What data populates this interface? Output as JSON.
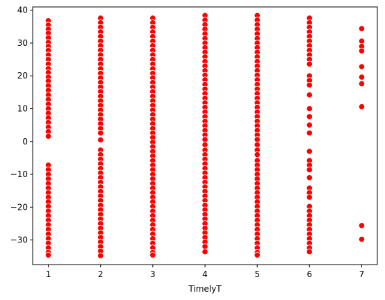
{
  "chart_data": {
    "type": "scatter",
    "title": "",
    "xlabel": "TimelyT",
    "ylabel": "",
    "xlim": [
      0.7,
      7.3
    ],
    "ylim": [
      -37.5,
      41.0
    ],
    "x_ticks": [
      1,
      2,
      3,
      4,
      5,
      6,
      7
    ],
    "y_ticks": [
      -30,
      -20,
      -10,
      0,
      10,
      20,
      30,
      40
    ],
    "grid": false,
    "legend": "none",
    "marker_color": "#ff0000",
    "marker_edge_color": "#ffffff",
    "series": [
      {
        "points": [
          [
            1,
            36.8
          ],
          [
            1,
            35.5
          ],
          [
            1,
            34.2
          ],
          [
            1,
            33.0
          ],
          [
            1,
            31.6
          ],
          [
            1,
            30.2
          ],
          [
            1,
            29.0
          ],
          [
            1,
            27.8
          ],
          [
            1,
            26.4
          ],
          [
            1,
            25.0
          ],
          [
            1,
            23.6
          ],
          [
            1,
            22.2
          ],
          [
            1,
            21.0
          ],
          [
            1,
            19.6
          ],
          [
            1,
            18.4
          ],
          [
            1,
            17.0
          ],
          [
            1,
            15.6
          ],
          [
            1,
            14.2
          ],
          [
            1,
            12.8
          ],
          [
            1,
            11.4
          ],
          [
            1,
            10.0
          ],
          [
            1,
            8.6
          ],
          [
            1,
            7.2
          ],
          [
            1,
            5.8
          ],
          [
            1,
            4.4
          ],
          [
            1,
            3.0
          ],
          [
            1,
            1.6
          ],
          [
            1,
            -7.2
          ],
          [
            1,
            -8.6
          ],
          [
            1,
            -10.0
          ],
          [
            1,
            -11.4
          ],
          [
            1,
            -12.8
          ],
          [
            1,
            -14.2
          ],
          [
            1,
            -15.6
          ],
          [
            1,
            -17.0
          ],
          [
            1,
            -18.4
          ],
          [
            1,
            -19.8
          ],
          [
            1,
            -21.2
          ],
          [
            1,
            -22.6
          ],
          [
            1,
            -24.0
          ],
          [
            1,
            -25.4
          ],
          [
            1,
            -26.8
          ],
          [
            1,
            -28.2
          ],
          [
            1,
            -29.6
          ],
          [
            1,
            -31.0
          ],
          [
            1,
            -32.4
          ],
          [
            1,
            -33.8
          ],
          [
            1,
            -34.6
          ],
          [
            2,
            37.6
          ],
          [
            2,
            36.2
          ],
          [
            2,
            34.8
          ],
          [
            2,
            33.4
          ],
          [
            2,
            32.0
          ],
          [
            2,
            30.6
          ],
          [
            2,
            29.2
          ],
          [
            2,
            27.8
          ],
          [
            2,
            26.4
          ],
          [
            2,
            25.0
          ],
          [
            2,
            23.6
          ],
          [
            2,
            22.2
          ],
          [
            2,
            20.8
          ],
          [
            2,
            19.4
          ],
          [
            2,
            18.0
          ],
          [
            2,
            16.6
          ],
          [
            2,
            15.2
          ],
          [
            2,
            13.8
          ],
          [
            2,
            12.4
          ],
          [
            2,
            11.0
          ],
          [
            2,
            9.6
          ],
          [
            2,
            8.2
          ],
          [
            2,
            6.8
          ],
          [
            2,
            5.4
          ],
          [
            2,
            4.0
          ],
          [
            2,
            2.6
          ],
          [
            2,
            0.5
          ],
          [
            2,
            -2.6
          ],
          [
            2,
            -4.0
          ],
          [
            2,
            -5.4
          ],
          [
            2,
            -6.8
          ],
          [
            2,
            -8.2
          ],
          [
            2,
            -9.6
          ],
          [
            2,
            -11.0
          ],
          [
            2,
            -12.4
          ],
          [
            2,
            -13.8
          ],
          [
            2,
            -15.2
          ],
          [
            2,
            -16.6
          ],
          [
            2,
            -18.0
          ],
          [
            2,
            -19.4
          ],
          [
            2,
            -20.8
          ],
          [
            2,
            -22.2
          ],
          [
            2,
            -23.6
          ],
          [
            2,
            -25.0
          ],
          [
            2,
            -26.4
          ],
          [
            2,
            -27.8
          ],
          [
            2,
            -29.2
          ],
          [
            2,
            -30.6
          ],
          [
            2,
            -32.0
          ],
          [
            2,
            -33.4
          ],
          [
            2,
            -34.8
          ],
          [
            3,
            37.6
          ],
          [
            3,
            36.2
          ],
          [
            3,
            34.8
          ],
          [
            3,
            33.4
          ],
          [
            3,
            32.0
          ],
          [
            3,
            30.6
          ],
          [
            3,
            29.2
          ],
          [
            3,
            27.8
          ],
          [
            3,
            26.4
          ],
          [
            3,
            25.0
          ],
          [
            3,
            23.6
          ],
          [
            3,
            22.2
          ],
          [
            3,
            20.8
          ],
          [
            3,
            19.4
          ],
          [
            3,
            18.0
          ],
          [
            3,
            16.6
          ],
          [
            3,
            15.2
          ],
          [
            3,
            13.8
          ],
          [
            3,
            12.4
          ],
          [
            3,
            11.0
          ],
          [
            3,
            9.6
          ],
          [
            3,
            8.2
          ],
          [
            3,
            6.8
          ],
          [
            3,
            5.4
          ],
          [
            3,
            4.0
          ],
          [
            3,
            2.6
          ],
          [
            3,
            1.2
          ],
          [
            3,
            -0.2
          ],
          [
            3,
            -1.6
          ],
          [
            3,
            -3.0
          ],
          [
            3,
            -4.4
          ],
          [
            3,
            -5.8
          ],
          [
            3,
            -7.2
          ],
          [
            3,
            -8.6
          ],
          [
            3,
            -10.0
          ],
          [
            3,
            -11.4
          ],
          [
            3,
            -12.8
          ],
          [
            3,
            -14.2
          ],
          [
            3,
            -15.6
          ],
          [
            3,
            -17.0
          ],
          [
            3,
            -18.4
          ],
          [
            3,
            -19.8
          ],
          [
            3,
            -21.2
          ],
          [
            3,
            -22.6
          ],
          [
            3,
            -24.0
          ],
          [
            3,
            -25.4
          ],
          [
            3,
            -26.8
          ],
          [
            3,
            -28.2
          ],
          [
            3,
            -29.6
          ],
          [
            3,
            -31.0
          ],
          [
            3,
            -32.4
          ],
          [
            3,
            -33.8
          ],
          [
            3,
            -34.6
          ],
          [
            4,
            38.4
          ],
          [
            4,
            37.0
          ],
          [
            4,
            35.6
          ],
          [
            4,
            34.2
          ],
          [
            4,
            32.8
          ],
          [
            4,
            31.4
          ],
          [
            4,
            30.0
          ],
          [
            4,
            28.6
          ],
          [
            4,
            27.2
          ],
          [
            4,
            25.8
          ],
          [
            4,
            24.4
          ],
          [
            4,
            23.0
          ],
          [
            4,
            21.6
          ],
          [
            4,
            20.2
          ],
          [
            4,
            18.8
          ],
          [
            4,
            17.4
          ],
          [
            4,
            16.0
          ],
          [
            4,
            14.6
          ],
          [
            4,
            13.2
          ],
          [
            4,
            11.8
          ],
          [
            4,
            10.4
          ],
          [
            4,
            9.0
          ],
          [
            4,
            7.6
          ],
          [
            4,
            6.2
          ],
          [
            4,
            4.8
          ],
          [
            4,
            3.4
          ],
          [
            4,
            2.0
          ],
          [
            4,
            0.6
          ],
          [
            4,
            -1.0
          ],
          [
            4,
            -2.6
          ],
          [
            4,
            -4.0
          ],
          [
            4,
            -5.4
          ],
          [
            4,
            -6.8
          ],
          [
            4,
            -8.2
          ],
          [
            4,
            -9.6
          ],
          [
            4,
            -11.0
          ],
          [
            4,
            -12.4
          ],
          [
            4,
            -13.8
          ],
          [
            4,
            -15.2
          ],
          [
            4,
            -16.6
          ],
          [
            4,
            -18.0
          ],
          [
            4,
            -19.4
          ],
          [
            4,
            -20.8
          ],
          [
            4,
            -22.2
          ],
          [
            4,
            -23.6
          ],
          [
            4,
            -25.0
          ],
          [
            4,
            -26.4
          ],
          [
            4,
            -27.8
          ],
          [
            4,
            -29.2
          ],
          [
            4,
            -30.6
          ],
          [
            4,
            -32.0
          ],
          [
            4,
            -33.6
          ],
          [
            5,
            38.4
          ],
          [
            5,
            37.0
          ],
          [
            5,
            35.6
          ],
          [
            5,
            34.2
          ],
          [
            5,
            32.8
          ],
          [
            5,
            31.4
          ],
          [
            5,
            30.0
          ],
          [
            5,
            28.6
          ],
          [
            5,
            27.2
          ],
          [
            5,
            25.8
          ],
          [
            5,
            24.4
          ],
          [
            5,
            23.0
          ],
          [
            5,
            21.6
          ],
          [
            5,
            20.2
          ],
          [
            5,
            18.8
          ],
          [
            5,
            17.4
          ],
          [
            5,
            16.0
          ],
          [
            5,
            14.6
          ],
          [
            5,
            13.2
          ],
          [
            5,
            11.8
          ],
          [
            5,
            10.4
          ],
          [
            5,
            9.0
          ],
          [
            5,
            7.6
          ],
          [
            5,
            6.2
          ],
          [
            5,
            4.8
          ],
          [
            5,
            3.4
          ],
          [
            5,
            2.0
          ],
          [
            5,
            0.6
          ],
          [
            5,
            -1.0
          ],
          [
            5,
            -2.6
          ],
          [
            5,
            -4.0
          ],
          [
            5,
            -5.8
          ],
          [
            5,
            -7.2
          ],
          [
            5,
            -8.6
          ],
          [
            5,
            -10.0
          ],
          [
            5,
            -11.4
          ],
          [
            5,
            -12.8
          ],
          [
            5,
            -14.2
          ],
          [
            5,
            -15.6
          ],
          [
            5,
            -17.0
          ],
          [
            5,
            -18.4
          ],
          [
            5,
            -19.8
          ],
          [
            5,
            -21.2
          ],
          [
            5,
            -22.6
          ],
          [
            5,
            -24.0
          ],
          [
            5,
            -25.4
          ],
          [
            5,
            -26.8
          ],
          [
            5,
            -28.2
          ],
          [
            5,
            -29.6
          ],
          [
            5,
            -31.0
          ],
          [
            5,
            -32.4
          ],
          [
            5,
            -33.8
          ],
          [
            5,
            -34.6
          ],
          [
            6,
            37.6
          ],
          [
            6,
            36.2
          ],
          [
            6,
            34.8
          ],
          [
            6,
            33.4
          ],
          [
            6,
            32.0
          ],
          [
            6,
            30.6
          ],
          [
            6,
            29.2
          ],
          [
            6,
            27.8
          ],
          [
            6,
            26.4
          ],
          [
            6,
            25.0
          ],
          [
            6,
            23.6
          ],
          [
            6,
            20.0
          ],
          [
            6,
            18.6
          ],
          [
            6,
            17.2
          ],
          [
            6,
            14.2
          ],
          [
            6,
            10.0
          ],
          [
            6,
            7.6
          ],
          [
            6,
            5.0
          ],
          [
            6,
            2.6
          ],
          [
            6,
            -3.0
          ],
          [
            6,
            -5.8
          ],
          [
            6,
            -7.2
          ],
          [
            6,
            -8.6
          ],
          [
            6,
            -11.0
          ],
          [
            6,
            -14.2
          ],
          [
            6,
            -15.6
          ],
          [
            6,
            -17.0
          ],
          [
            6,
            -19.8
          ],
          [
            6,
            -21.2
          ],
          [
            6,
            -22.6
          ],
          [
            6,
            -24.0
          ],
          [
            6,
            -25.4
          ],
          [
            6,
            -26.8
          ],
          [
            6,
            -28.2
          ],
          [
            6,
            -29.6
          ],
          [
            6,
            -31.0
          ],
          [
            6,
            -32.4
          ],
          [
            6,
            -33.6
          ],
          [
            7,
            34.4
          ],
          [
            7,
            30.6
          ],
          [
            7,
            29.0
          ],
          [
            7,
            27.6
          ],
          [
            7,
            22.8
          ],
          [
            7,
            19.6
          ],
          [
            7,
            17.6
          ],
          [
            7,
            10.6
          ],
          [
            7,
            -25.6
          ],
          [
            7,
            -29.8
          ]
        ]
      }
    ]
  }
}
